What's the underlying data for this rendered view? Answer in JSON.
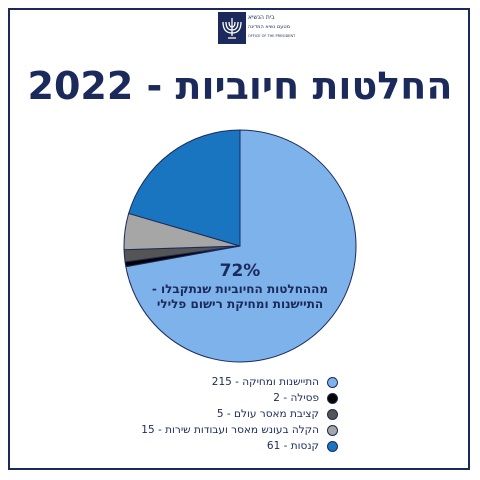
{
  "logo": {
    "line1": "בית הנשיא",
    "line2": "מטעם נשיא המדינה",
    "sub": "OFFICE OF THE PRESIDENT"
  },
  "title": "החלטות חיוביות - 2022",
  "chart_data": {
    "type": "pie",
    "title": "החלטות חיוביות - 2022",
    "slices": [
      {
        "label": "התיישנות ומחיקה",
        "value": 215,
        "color": "#7db3ea"
      },
      {
        "label": "פסילה",
        "value": 2,
        "color": "#000000"
      },
      {
        "label": "קציבת מאסר עולם",
        "value": 5,
        "color": "#555555"
      },
      {
        "label": "הקלה בעונש מאסר ועבודות שירות",
        "value": 15,
        "color": "#a6a6a6"
      },
      {
        "label": "קנסות",
        "value": 61,
        "color": "#1a75c0"
      }
    ],
    "annotation": {
      "percent": "72%",
      "line1": "מההחלטות החיוביות שנתקבלו -",
      "line2": "התיישנות ומחיקת רישום פלילי"
    }
  },
  "legend": [
    {
      "text": "התיישנות ומחיקה - 215",
      "color": "#7db3ea"
    },
    {
      "text": "פסילה - 2",
      "color": "#000000"
    },
    {
      "text": "קציבת מאסר עולם - 5",
      "color": "#555555"
    },
    {
      "text": "הקלה בעונש מאסר ועבודות שירות - 15",
      "color": "#a6a6a6"
    },
    {
      "text": "קנסות - 61",
      "color": "#1a75c0"
    }
  ]
}
